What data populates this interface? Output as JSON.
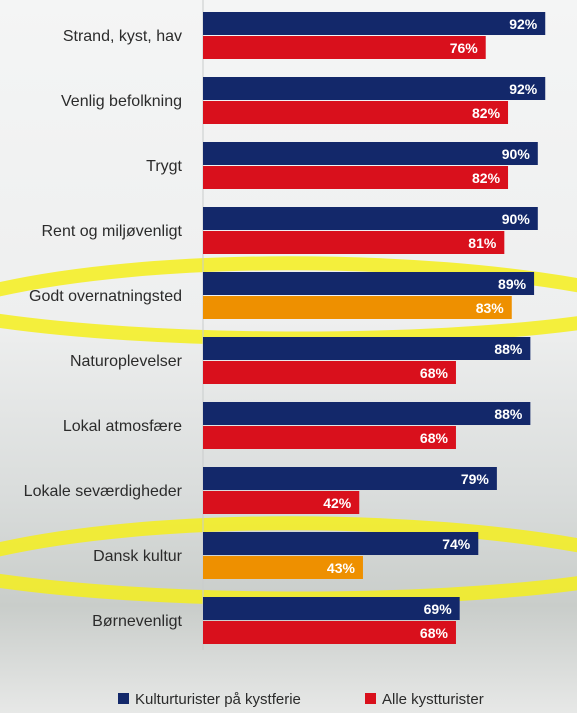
{
  "chart_data": {
    "type": "bar",
    "orientation": "horizontal",
    "categories": [
      "Strand, kyst, hav",
      "Venlig befolkning",
      "Trygt",
      "Rent og miljøvenligt",
      "Godt overnatningsted",
      "Naturoplevelser",
      "Lokal atmosfære",
      "Lokale seværdigheder",
      "Dansk kultur",
      "Børnevenligt"
    ],
    "series": [
      {
        "name": "Kulturturister på kystferie",
        "color": "#13286a",
        "values": [
          92,
          92,
          90,
          90,
          89,
          88,
          88,
          79,
          74,
          69
        ],
        "labels": [
          "92%",
          "92%",
          "90%",
          "90%",
          "89%",
          "88%",
          "88%",
          "79%",
          "74%",
          "69%"
        ]
      },
      {
        "name": "Alle kystturister",
        "color": "#d9101c",
        "values": [
          76,
          82,
          82,
          81,
          83,
          68,
          68,
          42,
          43,
          68
        ],
        "labels": [
          "76%",
          "82%",
          "82%",
          "81%",
          "83%",
          "68%",
          "68%",
          "42%",
          "43%",
          "68%"
        ]
      }
    ],
    "xlim": [
      0,
      100
    ],
    "highlighted_categories": [
      "Godt overnatningsted",
      "Dansk kultur"
    ],
    "highlight_color": "#f4ee1c",
    "legend_position": "bottom",
    "grid": false
  }
}
